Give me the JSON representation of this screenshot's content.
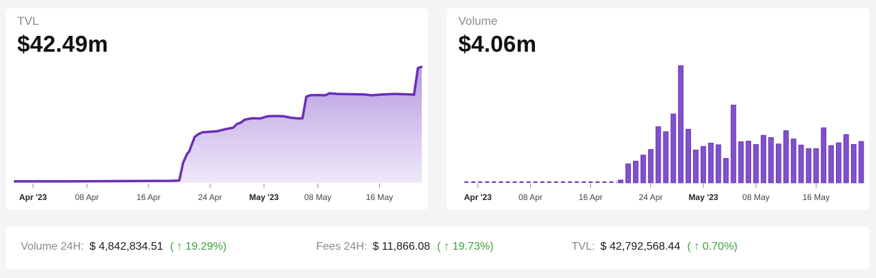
{
  "colors": {
    "accent": "#6a30b8",
    "area_top": "#b79be0",
    "area_bottom": "#efe8f9",
    "positive": "#3aa23a"
  },
  "tvl_card": {
    "label": "TVL",
    "value": "$42.49m"
  },
  "volume_card": {
    "label": "Volume",
    "value": "$4.06m"
  },
  "stats": [
    {
      "label": "Volume 24H:",
      "value": "$ 4,842,834.51",
      "change": "( ↑ 19.29%)"
    },
    {
      "label": "Fees 24H:",
      "value": "$ 11,866.08",
      "change": "( ↑ 19.73%)"
    },
    {
      "label": "TVL:",
      "value": "$ 42,792,568.44",
      "change": "( ↑ 0.70%)"
    }
  ],
  "chart_data": [
    {
      "type": "area",
      "title": "TVL",
      "x_ticks": [
        {
          "label": "Apr '23",
          "day": 1,
          "strong": true
        },
        {
          "label": "08 Apr",
          "day": 8,
          "strong": false
        },
        {
          "label": "16 Apr",
          "day": 16,
          "strong": false
        },
        {
          "label": "24 Apr",
          "day": 24,
          "strong": false
        },
        {
          "label": "May '23",
          "day": 31,
          "strong": true
        },
        {
          "label": "08 May",
          "day": 38,
          "strong": false
        },
        {
          "label": "16 May",
          "day": 46,
          "strong": false
        }
      ],
      "x_range": [
        -1.5,
        51.5
      ],
      "ylim": [
        0,
        44
      ],
      "unit": "$m",
      "series": [
        {
          "points": [
            [
              -1.5,
              0.5
            ],
            [
              5,
              0.5
            ],
            [
              12,
              0.6
            ],
            [
              19,
              0.7
            ],
            [
              20,
              0.8
            ],
            [
              20.5,
              7
            ],
            [
              21,
              10
            ],
            [
              21.3,
              11
            ],
            [
              22,
              16
            ],
            [
              22.5,
              17
            ],
            [
              23,
              17.6
            ],
            [
              24,
              17.8
            ],
            [
              25,
              18
            ],
            [
              26,
              18.7
            ],
            [
              27,
              19.2
            ],
            [
              27.5,
              20.5
            ],
            [
              28,
              21
            ],
            [
              28.5,
              22
            ],
            [
              29.5,
              22.5
            ],
            [
              30.5,
              22.4
            ],
            [
              31.5,
              23.2
            ],
            [
              32.5,
              23.3
            ],
            [
              33.5,
              23.2
            ],
            [
              34.5,
              22.7
            ],
            [
              35.5,
              22.4
            ],
            [
              36,
              22.5
            ],
            [
              36.5,
              30
            ],
            [
              37,
              30.5
            ],
            [
              38,
              30.6
            ],
            [
              39,
              30.5
            ],
            [
              39.5,
              31.2
            ],
            [
              40.5,
              31
            ],
            [
              42,
              30.9
            ],
            [
              44,
              30.8
            ],
            [
              45,
              30.5
            ],
            [
              46.5,
              30.8
            ],
            [
              48,
              31
            ],
            [
              50,
              30.8
            ],
            [
              50.5,
              30.7
            ],
            [
              51,
              40
            ],
            [
              52,
              40.5
            ],
            [
              54,
              40.6
            ]
          ]
        }
      ]
    },
    {
      "type": "bar",
      "title": "Volume",
      "x_ticks": [
        {
          "label": "Apr '23",
          "day": 1,
          "strong": true
        },
        {
          "label": "08 Apr",
          "day": 8,
          "strong": false
        },
        {
          "label": "16 Apr",
          "day": 16,
          "strong": false
        },
        {
          "label": "24 Apr",
          "day": 24,
          "strong": false
        },
        {
          "label": "May '23",
          "day": 31,
          "strong": true
        },
        {
          "label": "08 May",
          "day": 38,
          "strong": false
        },
        {
          "label": "16 May",
          "day": 46,
          "strong": false
        }
      ],
      "x_range": [
        -1.5,
        52.5
      ],
      "ylim": [
        0,
        4.3
      ],
      "unit": "$m",
      "bars_start_day": 20,
      "bars": [
        0.1,
        0.68,
        0.78,
        1.0,
        1.2,
        2.02,
        1.84,
        2.48,
        4.22,
        1.93,
        1.18,
        1.31,
        1.43,
        1.37,
        0.88,
        2.8,
        1.48,
        1.5,
        1.38,
        1.71,
        1.63,
        1.4,
        1.88,
        1.58,
        1.36,
        1.23,
        1.23,
        1.98,
        1.34,
        1.44,
        1.74,
        1.38,
        1.49
      ]
    }
  ]
}
